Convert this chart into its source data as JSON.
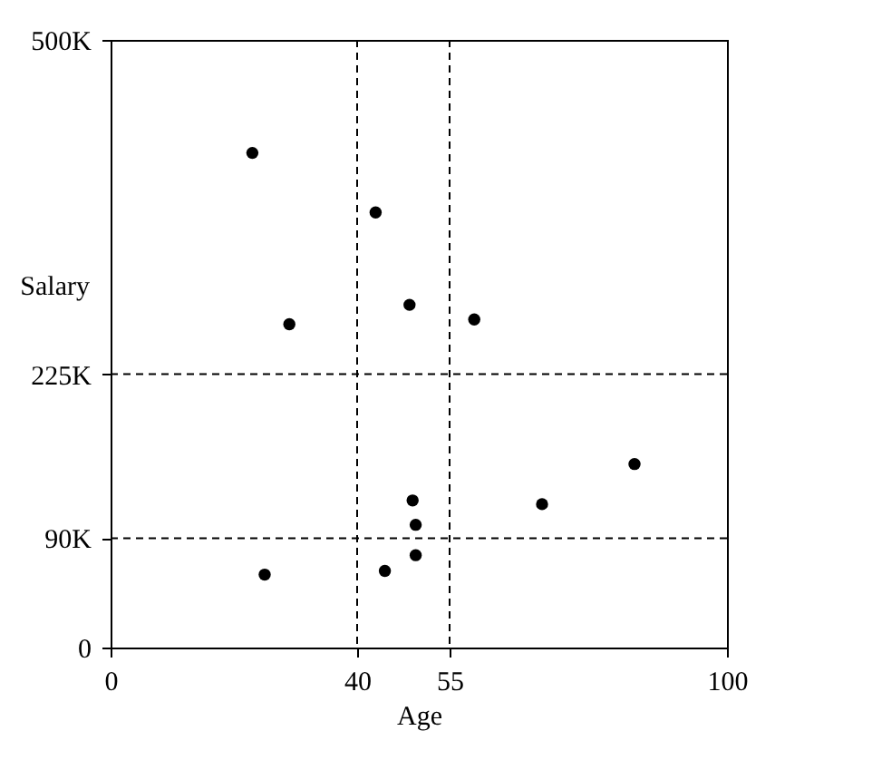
{
  "chart_data": {
    "type": "scatter",
    "xlabel": "Age",
    "ylabel": "Salary",
    "x": [
      23,
      29,
      43,
      48.5,
      59,
      49,
      49.5,
      49.5,
      44.5,
      25,
      70,
      85
    ],
    "series": [
      {
        "color": "#000000",
        "values": [
          407000,
          266000,
          358000,
          282000,
          270000,
          121000,
          101000,
          76000,
          63000,
          60000,
          118000,
          151000
        ]
      }
    ],
    "xlim": [
      0,
      100
    ],
    "xticks": [
      0,
      40,
      55,
      100
    ],
    "ylim": [
      0,
      500000
    ],
    "yticks": [
      {
        "value": 0,
        "label": "0"
      },
      {
        "value": 90000,
        "label": "90K"
      },
      {
        "value": 225000,
        "label": "225K"
      },
      {
        "value": 500000,
        "label": "500K"
      }
    ],
    "ref_lines": [
      {
        "axis": "x",
        "value": 40,
        "color": "#000000",
        "line_style": "dashed"
      },
      {
        "axis": "x",
        "value": 55,
        "color": "#000000",
        "line_style": "dashed"
      },
      {
        "axis": "y",
        "value": 225000,
        "color": "#000000",
        "line_style": "dashed"
      },
      {
        "axis": "y",
        "value": 90000,
        "color": "#000000",
        "line_style": "dashed"
      }
    ],
    "grid": false,
    "marker": "circle"
  }
}
